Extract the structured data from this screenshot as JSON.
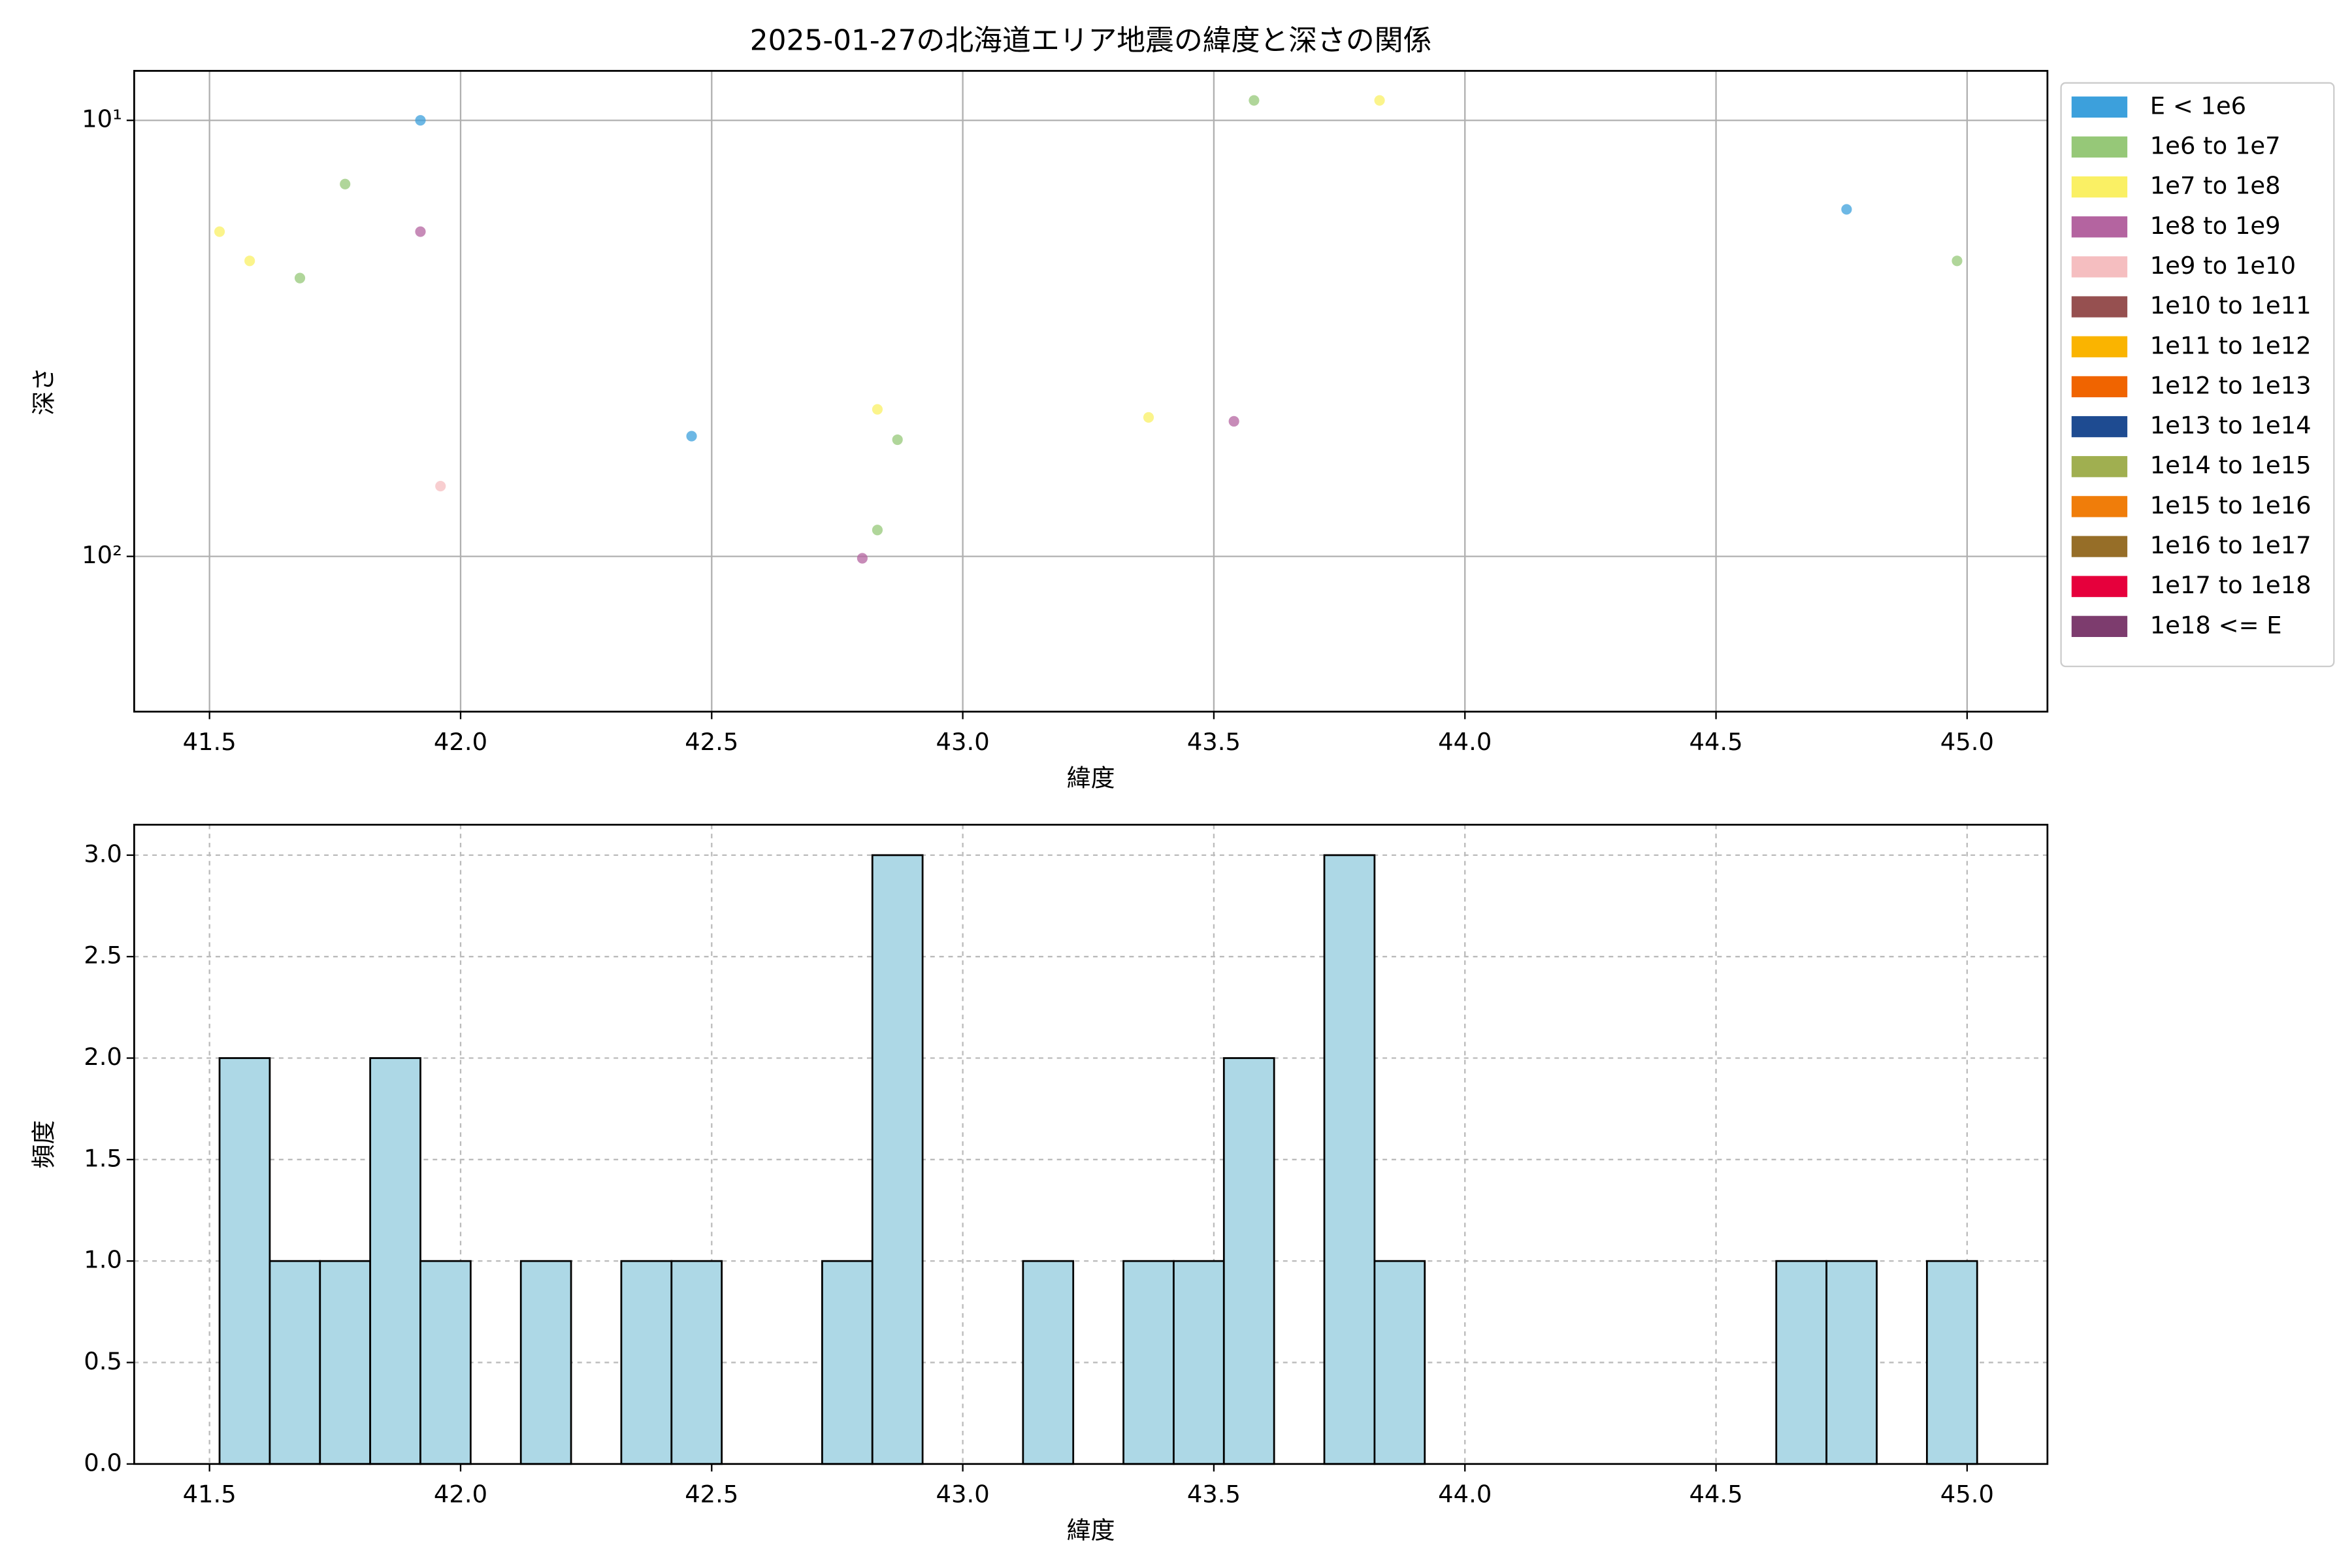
{
  "chart_data": [
    {
      "type": "scatter",
      "title": "2025-01-27の北海道エリア地震の緯度と深さの関係",
      "xlabel": "緯度",
      "ylabel": "深さ",
      "xlim": [
        41.35,
        45.16
      ],
      "xticks": [
        {
          "value": 41.5,
          "label": "41.5"
        },
        {
          "value": 42.0,
          "label": "42.0"
        },
        {
          "value": 42.5,
          "label": "42.5"
        },
        {
          "value": 43.0,
          "label": "43.0"
        },
        {
          "value": 43.5,
          "label": "43.5"
        },
        {
          "value": 44.0,
          "label": "44.0"
        },
        {
          "value": 44.5,
          "label": "44.5"
        },
        {
          "value": 45.0,
          "label": "45.0"
        }
      ],
      "ylim": [
        7.7,
        227
      ],
      "yscale": "log",
      "y_inverted": true,
      "yticks": [
        {
          "value": 10,
          "label": "10¹"
        },
        {
          "value": 100,
          "label": "10²"
        }
      ],
      "grid": true,
      "grid_style": "solid",
      "legend": "outside-right",
      "series": [
        {
          "name": "E < 1e6",
          "color": "#3ca0dc",
          "x": [
            41.92,
            44.76,
            42.46
          ],
          "y": [
            10,
            16,
            53
          ]
        },
        {
          "name": "1e6 to 1e7",
          "color": "#96c878",
          "x": [
            43.58,
            41.77,
            41.68,
            44.98,
            42.87,
            42.83
          ],
          "y": [
            9.0,
            14,
            23,
            21,
            54,
            87
          ]
        },
        {
          "name": "1e7 to 1e8",
          "color": "#faf064",
          "x": [
            43.83,
            41.52,
            41.58,
            42.83,
            43.37
          ],
          "y": [
            9.0,
            18,
            21,
            46,
            48
          ]
        },
        {
          "name": "1e8 to 1e9",
          "color": "#b464a0",
          "x": [
            41.92,
            43.54,
            42.8
          ],
          "y": [
            18,
            49,
            101
          ]
        },
        {
          "name": "1e9 to 1e10",
          "color": "#f5bec0",
          "x": [
            41.96
          ],
          "y": [
            69
          ]
        },
        {
          "name": "1e10 to 1e11",
          "color": "#965050",
          "x": [],
          "y": []
        },
        {
          "name": "1e11 to 1e12",
          "color": "#fab400",
          "x": [],
          "y": []
        },
        {
          "name": "1e12 to 1e13",
          "color": "#f06400",
          "x": [],
          "y": []
        },
        {
          "name": "1e13 to 1e14",
          "color": "#1e4b91",
          "x": [],
          "y": []
        },
        {
          "name": "1e14 to 1e15",
          "color": "#a0af50",
          "x": [],
          "y": []
        },
        {
          "name": "1e15 to 1e16",
          "color": "#f07d0a",
          "x": [],
          "y": []
        },
        {
          "name": "1e16 to 1e17",
          "color": "#966e28",
          "x": [],
          "y": []
        },
        {
          "name": "1e17 to 1e18",
          "color": "#e6003c",
          "x": [],
          "y": []
        },
        {
          "name": "1e18 <= E",
          "color": "#7d3c6e",
          "x": [],
          "y": []
        }
      ]
    },
    {
      "type": "histogram",
      "xlabel": "緯度",
      "ylabel": "頻度",
      "color": "#add8e6",
      "xlim": [
        41.35,
        45.16
      ],
      "xticks": [
        {
          "value": 41.5,
          "label": "41.5"
        },
        {
          "value": 42.0,
          "label": "42.0"
        },
        {
          "value": 42.5,
          "label": "42.5"
        },
        {
          "value": 43.0,
          "label": "43.0"
        },
        {
          "value": 43.5,
          "label": "43.5"
        },
        {
          "value": 44.0,
          "label": "44.0"
        },
        {
          "value": 44.5,
          "label": "44.5"
        },
        {
          "value": 45.0,
          "label": "45.0"
        }
      ],
      "ylim": [
        0,
        3.15
      ],
      "yticks": [
        {
          "value": 0,
          "label": "0.0"
        },
        {
          "value": 0.5,
          "label": "0.5"
        },
        {
          "value": 1,
          "label": "1.0"
        },
        {
          "value": 1.5,
          "label": "1.5"
        },
        {
          "value": 2,
          "label": "2.0"
        },
        {
          "value": 2.5,
          "label": "2.5"
        },
        {
          "value": 3,
          "label": "3.0"
        }
      ],
      "grid": true,
      "grid_style": "dashed",
      "bins": [
        41.52,
        41.62,
        41.72,
        41.82,
        41.92,
        42.02,
        42.12,
        42.22,
        42.32,
        42.42,
        42.52,
        42.62,
        42.72,
        42.82,
        42.92,
        43.02,
        43.12,
        43.22,
        43.32,
        43.42,
        43.52,
        43.62,
        43.72,
        43.82,
        43.92,
        44.02,
        44.12,
        44.22,
        44.32,
        44.42,
        44.52,
        44.62,
        44.72,
        44.82,
        44.92,
        45.02
      ],
      "values": [
        2,
        1,
        1,
        2,
        1,
        0,
        1,
        0,
        1,
        1,
        0,
        0,
        1,
        3,
        0,
        0,
        1,
        0,
        1,
        1,
        2,
        0,
        3,
        1,
        0,
        0,
        0,
        0,
        0,
        0,
        0,
        1,
        1,
        0,
        1
      ]
    }
  ]
}
